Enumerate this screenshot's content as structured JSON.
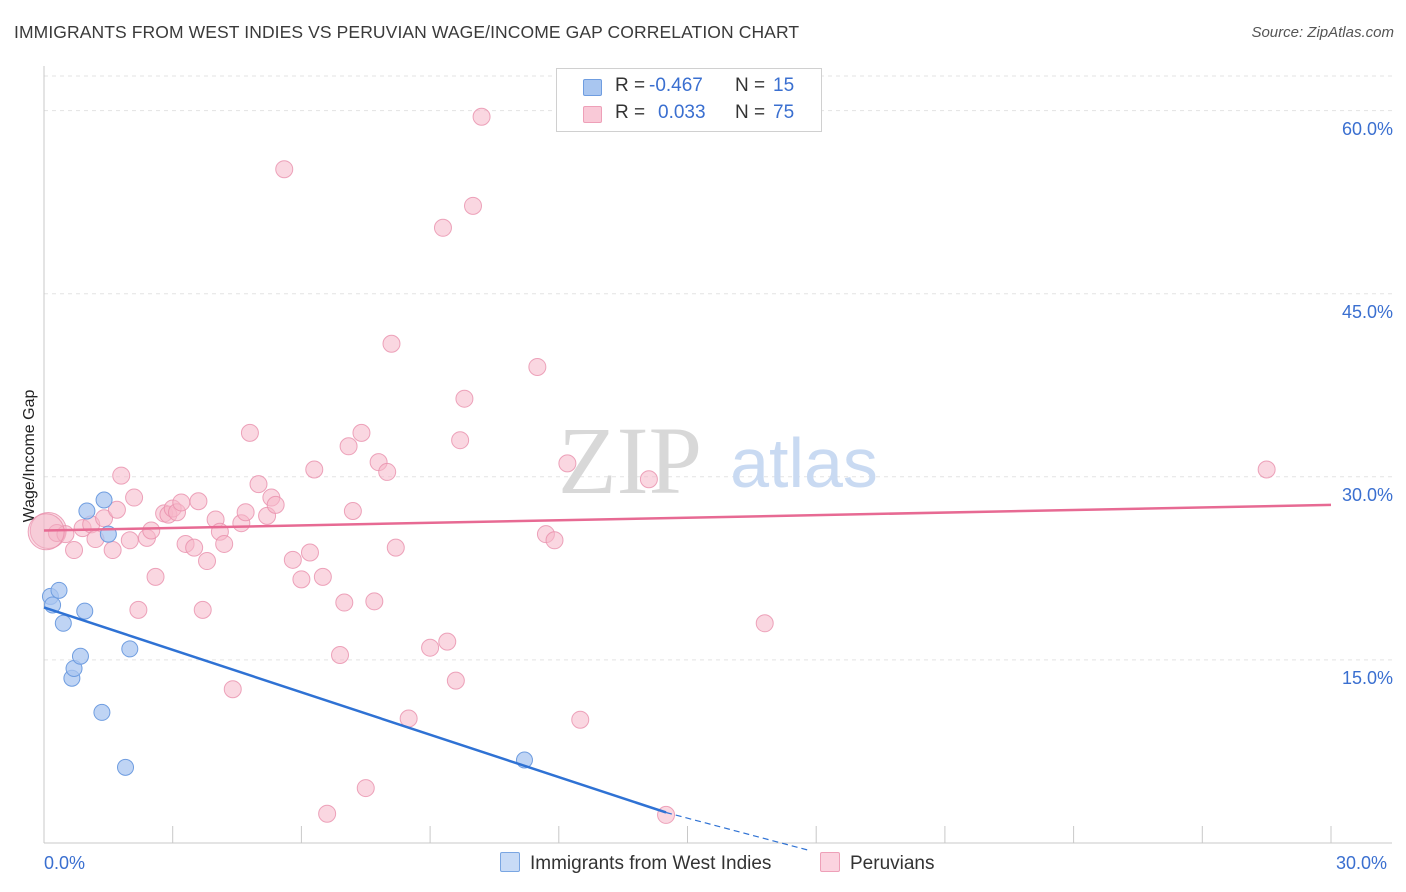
{
  "title": "IMMIGRANTS FROM WEST INDIES VS PERUVIAN WAGE/INCOME GAP CORRELATION CHART",
  "source": "Source: ZipAtlas.com",
  "watermark": {
    "zip": "ZIP",
    "atlas": "atlas"
  },
  "legend_top": {
    "row1": {
      "r_label": "R =",
      "r_value": "-0.467",
      "n_label": "N =",
      "n_value": "15"
    },
    "row2": {
      "r_label": "R =",
      "r_value": "0.033",
      "n_label": "N =",
      "n_value": "75"
    }
  },
  "legend_bottom": {
    "series1": "Immigrants from West Indies",
    "series2": "Peruvians"
  },
  "colors": {
    "blue_fill": "#a9c6f0",
    "blue_stroke": "#6f9de0",
    "blue_line": "#2f72d4",
    "pink_fill": "#f5b6c8",
    "pink_stroke": "#e98fab",
    "pink_line": "#e76a93",
    "tick_text": "#3a6fd0",
    "grid": "#e3e3e3"
  },
  "chart_data": {
    "type": "scatter",
    "title": "IMMIGRANTS FROM WEST INDIES VS PERUVIAN WAGE/INCOME GAP CORRELATION CHART",
    "xlabel": "",
    "ylabel": "Wage/Income Gap",
    "xlim": [
      0,
      30
    ],
    "ylim": [
      0,
      63
    ],
    "x_tick_labels": [
      "0.0%",
      "30.0%"
    ],
    "y_ticks": [
      15,
      30,
      45,
      60
    ],
    "y_tick_labels": [
      "15.0%",
      "30.0%",
      "45.0%",
      "60.0%"
    ],
    "series": [
      {
        "name": "Immigrants from West Indies",
        "R": -0.467,
        "N": 15,
        "points": [
          [
            0.15,
            20.2
          ],
          [
            0.2,
            19.5
          ],
          [
            0.35,
            20.7
          ],
          [
            0.45,
            18.0
          ],
          [
            0.65,
            13.5
          ],
          [
            0.7,
            14.3
          ],
          [
            0.85,
            15.3
          ],
          [
            0.95,
            19.0
          ],
          [
            1.0,
            27.2
          ],
          [
            1.35,
            10.7
          ],
          [
            1.4,
            28.1
          ],
          [
            1.5,
            25.3
          ],
          [
            1.9,
            6.2
          ],
          [
            2.0,
            15.9
          ],
          [
            11.2,
            6.8
          ]
        ],
        "trend": {
          "x": [
            0,
            14.5
          ],
          "y": [
            19.3,
            2.5
          ],
          "dashed_to": [
            17.8,
            -0.6
          ]
        }
      },
      {
        "name": "Peruvians",
        "R": 0.033,
        "N": 75,
        "points": [
          [
            0.1,
            25.6
          ],
          [
            0.3,
            25.4
          ],
          [
            0.5,
            25.3
          ],
          [
            0.7,
            24.0
          ],
          [
            0.9,
            25.8
          ],
          [
            1.1,
            26.1
          ],
          [
            1.2,
            24.9
          ],
          [
            1.4,
            26.6
          ],
          [
            1.6,
            24.0
          ],
          [
            1.7,
            27.3
          ],
          [
            1.8,
            30.1
          ],
          [
            2.0,
            24.8
          ],
          [
            2.1,
            28.3
          ],
          [
            2.2,
            19.1
          ],
          [
            2.4,
            25.0
          ],
          [
            2.5,
            25.6
          ],
          [
            2.6,
            21.8
          ],
          [
            2.8,
            27.0
          ],
          [
            2.9,
            26.9
          ],
          [
            3.0,
            27.4
          ],
          [
            3.1,
            27.1
          ],
          [
            3.2,
            27.9
          ],
          [
            3.3,
            24.5
          ],
          [
            3.5,
            24.2
          ],
          [
            3.6,
            28.0
          ],
          [
            3.7,
            19.1
          ],
          [
            3.8,
            23.1
          ],
          [
            4.0,
            26.5
          ],
          [
            4.1,
            25.5
          ],
          [
            4.2,
            24.5
          ],
          [
            4.4,
            12.6
          ],
          [
            4.6,
            26.2
          ],
          [
            4.7,
            27.1
          ],
          [
            4.8,
            33.6
          ],
          [
            5.0,
            29.4
          ],
          [
            5.2,
            26.8
          ],
          [
            5.3,
            28.3
          ],
          [
            5.4,
            27.7
          ],
          [
            5.6,
            55.2
          ],
          [
            5.8,
            23.2
          ],
          [
            6.0,
            21.6
          ],
          [
            6.2,
            23.8
          ],
          [
            6.3,
            30.6
          ],
          [
            6.5,
            21.8
          ],
          [
            6.6,
            2.4
          ],
          [
            6.9,
            15.4
          ],
          [
            7.0,
            19.7
          ],
          [
            7.1,
            32.5
          ],
          [
            7.2,
            27.2
          ],
          [
            7.4,
            33.6
          ],
          [
            7.5,
            4.5
          ],
          [
            7.7,
            19.8
          ],
          [
            7.8,
            31.2
          ],
          [
            8.0,
            30.4
          ],
          [
            8.1,
            40.9
          ],
          [
            8.2,
            24.2
          ],
          [
            8.5,
            10.2
          ],
          [
            9.0,
            16.0
          ],
          [
            9.3,
            50.4
          ],
          [
            9.4,
            16.5
          ],
          [
            9.6,
            13.3
          ],
          [
            9.7,
            33.0
          ],
          [
            9.8,
            36.4
          ],
          [
            10.0,
            52.2
          ],
          [
            10.2,
            59.5
          ],
          [
            11.5,
            39.0
          ],
          [
            11.7,
            25.3
          ],
          [
            11.9,
            24.8
          ],
          [
            12.2,
            31.1
          ],
          [
            12.5,
            10.1
          ],
          [
            14.1,
            29.8
          ],
          [
            14.5,
            2.3
          ],
          [
            16.8,
            18.0
          ],
          [
            28.5,
            30.6
          ],
          [
            0.05,
            25.5
          ]
        ],
        "trend": {
          "x": [
            0,
            30
          ],
          "y": [
            25.6,
            27.7
          ]
        }
      }
    ]
  }
}
